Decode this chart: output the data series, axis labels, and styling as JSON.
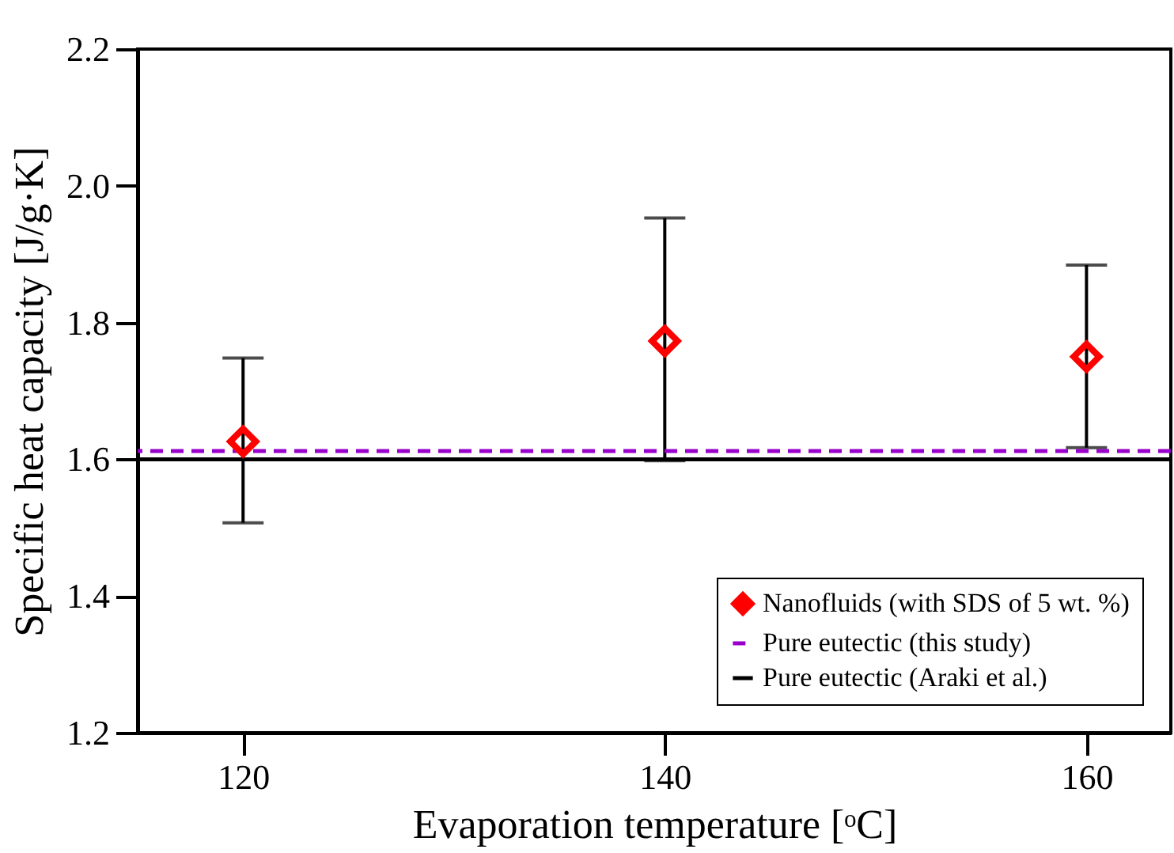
{
  "chart_data": {
    "type": "scatter",
    "xlabel": "Evaporation temperature [ᵒC]",
    "ylabel": "Specific heat capacity [J/g·K]",
    "x": [
      120,
      140,
      160
    ],
    "series": [
      {
        "name": "Nanofluids (with SDS of 5 wt. %)",
        "color": "#ff0000",
        "values": [
          1.626,
          1.773,
          1.75
        ],
        "errors": [
          [
            1.507,
            1.748
          ],
          [
            1.598,
            1.953
          ],
          [
            1.617,
            1.884
          ]
        ]
      }
    ],
    "marker": "diamond",
    "ref_lines": [
      {
        "axis": "y",
        "value": 1.612,
        "label": "Pure eutectic (this study)",
        "color": "#9900cc",
        "line_style": "dashed"
      },
      {
        "axis": "y",
        "value": 1.6,
        "label": "Pure eutectic (Araki et al.)",
        "color": "#000000",
        "line_style": "solid"
      }
    ],
    "xlim": [
      115,
      164
    ],
    "ylim": [
      1.2,
      2.2
    ],
    "xticks": [
      120,
      140,
      160
    ],
    "yticks": [
      1.2,
      1.4,
      1.6,
      1.8,
      {
        "value": 2.0,
        "label": "2.0"
      },
      2.2
    ],
    "grid": false,
    "legend": "bottom right"
  }
}
